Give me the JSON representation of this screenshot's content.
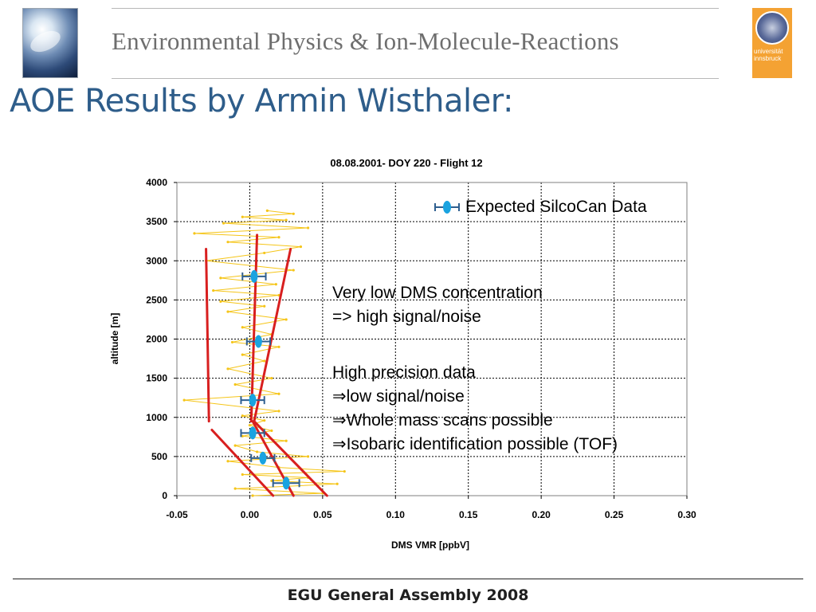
{
  "header": {
    "title": "Environmental Physics & Ion-Molecule-Reactions",
    "logo_text": "universität innsbruck"
  },
  "slide_title": "AOE Results by Armin Wisthaler:",
  "annotations": [
    "Very low DMS concentration",
    "=> high signal/noise",
    "High precision data",
    "⇒low signal/noise",
    "⇒Whole mass scans possible",
    "⇒Isobaric identification possible (TOF)"
  ],
  "footer": "EGU General Assembly 2008",
  "colors": {
    "title": "#2e5d8a",
    "trace": "#f5c518",
    "marker": "#1aa3e0",
    "errorbar": "#2f5f8f",
    "redline": "#d81f1f"
  },
  "chart_data": {
    "type": "scatter",
    "title": "08.08.2001- DOY 220 - Flight 12",
    "xlabel": "DMS VMR [ppbV]",
    "ylabel": "altitude [m]",
    "xlim": [
      -0.05,
      0.3
    ],
    "ylim": [
      0,
      4000
    ],
    "xticks": [
      "-0.05",
      "0.00",
      "0.05",
      "0.10",
      "0.15",
      "0.20",
      "0.25",
      "0.30"
    ],
    "yticks": [
      "0",
      "500",
      "1000",
      "1500",
      "2000",
      "2500",
      "3000",
      "3500",
      "4000"
    ],
    "grid": true,
    "legend": {
      "position": "top-right",
      "entries": [
        "Expected SilcoCan Data"
      ]
    },
    "series": [
      {
        "name": "Expected SilcoCan Data",
        "points": [
          {
            "x": 0.025,
            "y": 160,
            "xerr": 0.009
          },
          {
            "x": 0.009,
            "y": 480,
            "xerr": 0.008
          },
          {
            "x": 0.002,
            "y": 800,
            "xerr": 0.008
          },
          {
            "x": 0.002,
            "y": 1220,
            "xerr": 0.008
          },
          {
            "x": 0.006,
            "y": 1970,
            "xerr": 0.008
          },
          {
            "x": 0.003,
            "y": 2800,
            "xerr": 0.008
          }
        ]
      },
      {
        "points": [
          [
            0.002,
            0
          ],
          [
            0.05,
            30
          ],
          [
            -0.01,
            90
          ],
          [
            0.06,
            150
          ],
          [
            0.015,
            190
          ],
          [
            0.04,
            230
          ],
          [
            -0.005,
            270
          ],
          [
            0.065,
            310
          ],
          [
            0.02,
            360
          ],
          [
            -0.015,
            440
          ],
          [
            0.04,
            500
          ],
          [
            0.005,
            560
          ],
          [
            -0.01,
            640
          ],
          [
            0.025,
            700
          ],
          [
            -0.005,
            760
          ],
          [
            0.015,
            830
          ],
          [
            0.0,
            900
          ],
          [
            0.01,
            960
          ],
          [
            -0.005,
            1020
          ],
          [
            0.02,
            1080
          ],
          [
            -0.045,
            1220
          ],
          [
            0.02,
            1300
          ],
          [
            -0.01,
            1420
          ],
          [
            0.015,
            1500
          ],
          [
            -0.015,
            1620
          ],
          [
            0.01,
            1720
          ],
          [
            -0.005,
            1800
          ],
          [
            0.02,
            1900
          ],
          [
            -0.012,
            1960
          ],
          [
            0.015,
            2060
          ],
          [
            -0.005,
            2150
          ],
          [
            0.025,
            2250
          ],
          [
            -0.015,
            2350
          ],
          [
            0.01,
            2420
          ],
          [
            -0.02,
            2480
          ],
          [
            0.02,
            2560
          ],
          [
            -0.025,
            2620
          ],
          [
            0.018,
            2700
          ],
          [
            -0.02,
            2780
          ],
          [
            0.03,
            2880
          ],
          [
            -0.03,
            3000
          ],
          [
            0.01,
            3100
          ],
          [
            0.035,
            3180
          ],
          [
            -0.015,
            3240
          ],
          [
            0.02,
            3300
          ],
          [
            -0.038,
            3350
          ],
          [
            0.04,
            3420
          ],
          [
            -0.018,
            3480
          ],
          [
            0.025,
            3520
          ],
          [
            -0.005,
            3560
          ],
          [
            0.03,
            3600
          ],
          [
            0.012,
            3640
          ]
        ]
      }
    ],
    "lines": [
      {
        "x": [
          -0.03,
          -0.028
        ],
        "y": [
          3150,
          950
        ]
      },
      {
        "x": 0.005,
        "xend": 0.001,
        "y": 3330,
        "yend": 950
      },
      {
        "x": [
          0.028,
          0.003
        ],
        "y": [
          3150,
          950
        ]
      },
      {
        "x": [
          -0.026,
          0.016
        ],
        "y": [
          840,
          0
        ]
      },
      {
        "x": [
          0.002,
          0.03
        ],
        "y": [
          950,
          0
        ]
      },
      {
        "x": [
          0.003,
          0.053
        ],
        "y": [
          950,
          0
        ]
      }
    ]
  }
}
